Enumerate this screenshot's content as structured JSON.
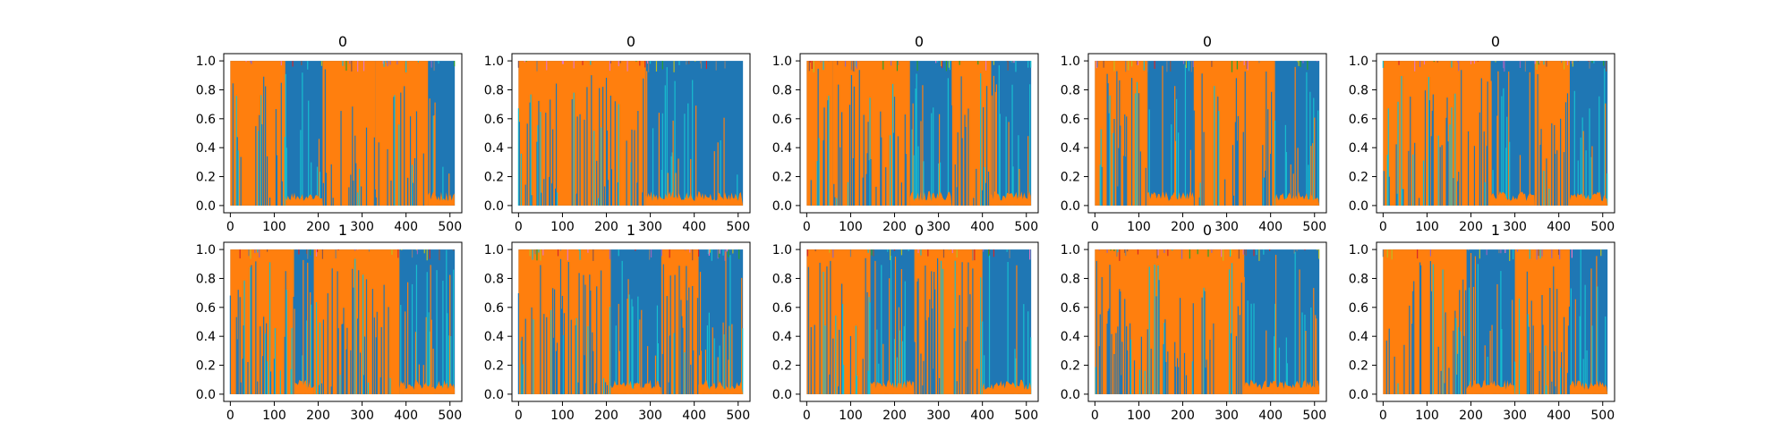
{
  "chart_data": {
    "type": "area",
    "layout": {
      "rows": 2,
      "cols": 5
    },
    "series_colors": [
      "#1f77b4",
      "#ff7f0e",
      "#2ca02c",
      "#d62728",
      "#9467bd",
      "#8c564b",
      "#e377c2",
      "#7f7f7f",
      "#bcbd22",
      "#17becf"
    ],
    "xlim": [
      -15,
      527
    ],
    "ylim": [
      -0.05,
      1.05
    ],
    "xticks": [
      0,
      100,
      200,
      300,
      400,
      500
    ],
    "xtick_labels": [
      "0",
      "100",
      "200",
      "300",
      "400",
      "500"
    ],
    "yticks": [
      0.0,
      0.2,
      0.4,
      0.6,
      0.8,
      1.0
    ],
    "ytick_labels": [
      "0.0",
      "0.2",
      "0.4",
      "0.6",
      "0.8",
      "1.0"
    ],
    "grid": false,
    "legend": "none",
    "n_points": 512,
    "dominant_series": [
      "#1f77b4",
      "#ff7f0e"
    ],
    "panels": [
      {
        "title": "0",
        "segments": [
          [
            0,
            125,
            "orange"
          ],
          [
            125,
            210,
            "blue"
          ],
          [
            210,
            330,
            "orange"
          ],
          [
            330,
            450,
            "orange"
          ],
          [
            450,
            511,
            "blue"
          ]
        ]
      },
      {
        "title": "0",
        "segments": [
          [
            0,
            290,
            "orange"
          ],
          [
            290,
            511,
            "blue"
          ]
        ]
      },
      {
        "title": "0",
        "segments": [
          [
            0,
            60,
            "orange"
          ],
          [
            60,
            235,
            "orange"
          ],
          [
            235,
            330,
            "blue"
          ],
          [
            330,
            420,
            "orange"
          ],
          [
            420,
            511,
            "blue"
          ]
        ]
      },
      {
        "title": "0",
        "segments": [
          [
            0,
            120,
            "orange"
          ],
          [
            120,
            225,
            "blue"
          ],
          [
            225,
            410,
            "orange"
          ],
          [
            410,
            511,
            "blue"
          ]
        ]
      },
      {
        "title": "0",
        "segments": [
          [
            0,
            245,
            "orange"
          ],
          [
            245,
            345,
            "blue"
          ],
          [
            345,
            425,
            "orange"
          ],
          [
            425,
            511,
            "blue"
          ]
        ]
      },
      {
        "title": "1",
        "segments": [
          [
            0,
            145,
            "orange"
          ],
          [
            145,
            190,
            "blue"
          ],
          [
            190,
            385,
            "orange"
          ],
          [
            385,
            511,
            "blue"
          ]
        ]
      },
      {
        "title": "1",
        "segments": [
          [
            0,
            210,
            "orange"
          ],
          [
            210,
            325,
            "blue"
          ],
          [
            325,
            410,
            "orange"
          ],
          [
            410,
            511,
            "blue"
          ]
        ]
      },
      {
        "title": "0",
        "segments": [
          [
            0,
            145,
            "orange"
          ],
          [
            145,
            245,
            "blue"
          ],
          [
            245,
            400,
            "orange"
          ],
          [
            400,
            511,
            "blue"
          ]
        ]
      },
      {
        "title": "0",
        "segments": [
          [
            0,
            340,
            "orange"
          ],
          [
            340,
            511,
            "blue"
          ]
        ]
      },
      {
        "title": "1",
        "segments": [
          [
            0,
            190,
            "orange"
          ],
          [
            190,
            300,
            "blue"
          ],
          [
            300,
            425,
            "orange"
          ],
          [
            425,
            511,
            "blue"
          ]
        ]
      }
    ]
  }
}
